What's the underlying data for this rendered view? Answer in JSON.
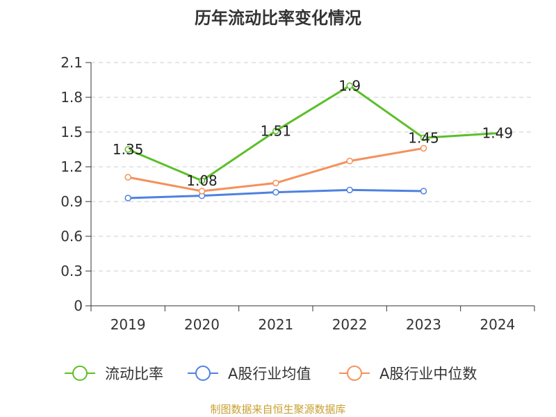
{
  "chart_data": {
    "type": "line",
    "title": "历年流动比率变化情况",
    "categories": [
      "2019",
      "2020",
      "2021",
      "2022",
      "2023",
      "2024"
    ],
    "ylim": [
      0,
      2.1
    ],
    "yticks": [
      "0",
      "0.3",
      "0.6",
      "0.9",
      "1.2",
      "1.5",
      "1.8",
      "2.1"
    ],
    "grid": true,
    "legend_position": "bottom",
    "series": [
      {
        "name": "流动比率",
        "color": "#5cbf2a",
        "values": [
          1.35,
          1.08,
          1.51,
          1.9,
          1.45,
          1.49
        ],
        "labels": [
          "1.35",
          "1.08",
          "1.51",
          "1.9",
          "1.45",
          "1.49"
        ]
      },
      {
        "name": "A股行业均值",
        "color": "#4f81e0",
        "values": [
          0.93,
          0.95,
          0.98,
          1.0,
          0.99,
          null
        ]
      },
      {
        "name": "A股行业中位数",
        "color": "#f5905a",
        "values": [
          1.11,
          0.99,
          1.06,
          1.25,
          1.36,
          null
        ]
      }
    ]
  },
  "footer": {
    "source": "制图数据来自恒生聚源数据库"
  }
}
